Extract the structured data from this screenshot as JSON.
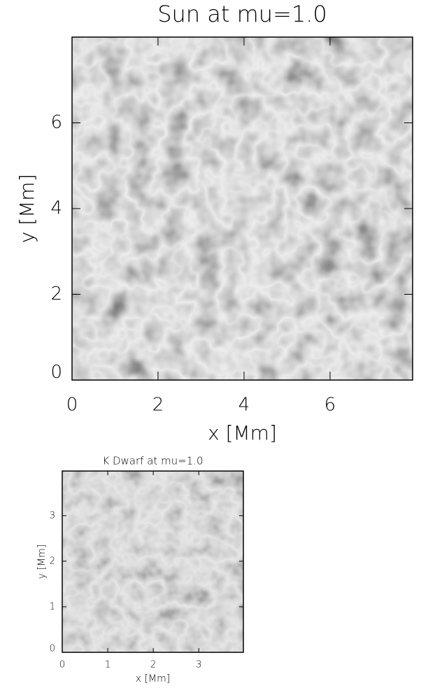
{
  "chart_data": [
    {
      "type": "image",
      "title": "Sun at mu=1.0",
      "x_label": "x [Mm]",
      "y_label": "y [Mm]",
      "xlim": [
        0,
        7.92
      ],
      "ylim": [
        0,
        8.0
      ],
      "xticks": [
        0,
        2,
        4,
        6
      ],
      "yticks": [
        0,
        2,
        4,
        6
      ],
      "colormap": "gray"
    },
    {
      "type": "image",
      "title": "K Dwarf at mu=1.0",
      "x_label": "x [Mm]",
      "y_label": "y [Mm]",
      "xlim": [
        0,
        3.98
      ],
      "ylim": [
        0,
        3.98
      ],
      "xticks": [
        0,
        1,
        2,
        3
      ],
      "yticks": [
        0,
        1,
        2,
        3
      ],
      "colormap": "gray"
    }
  ]
}
